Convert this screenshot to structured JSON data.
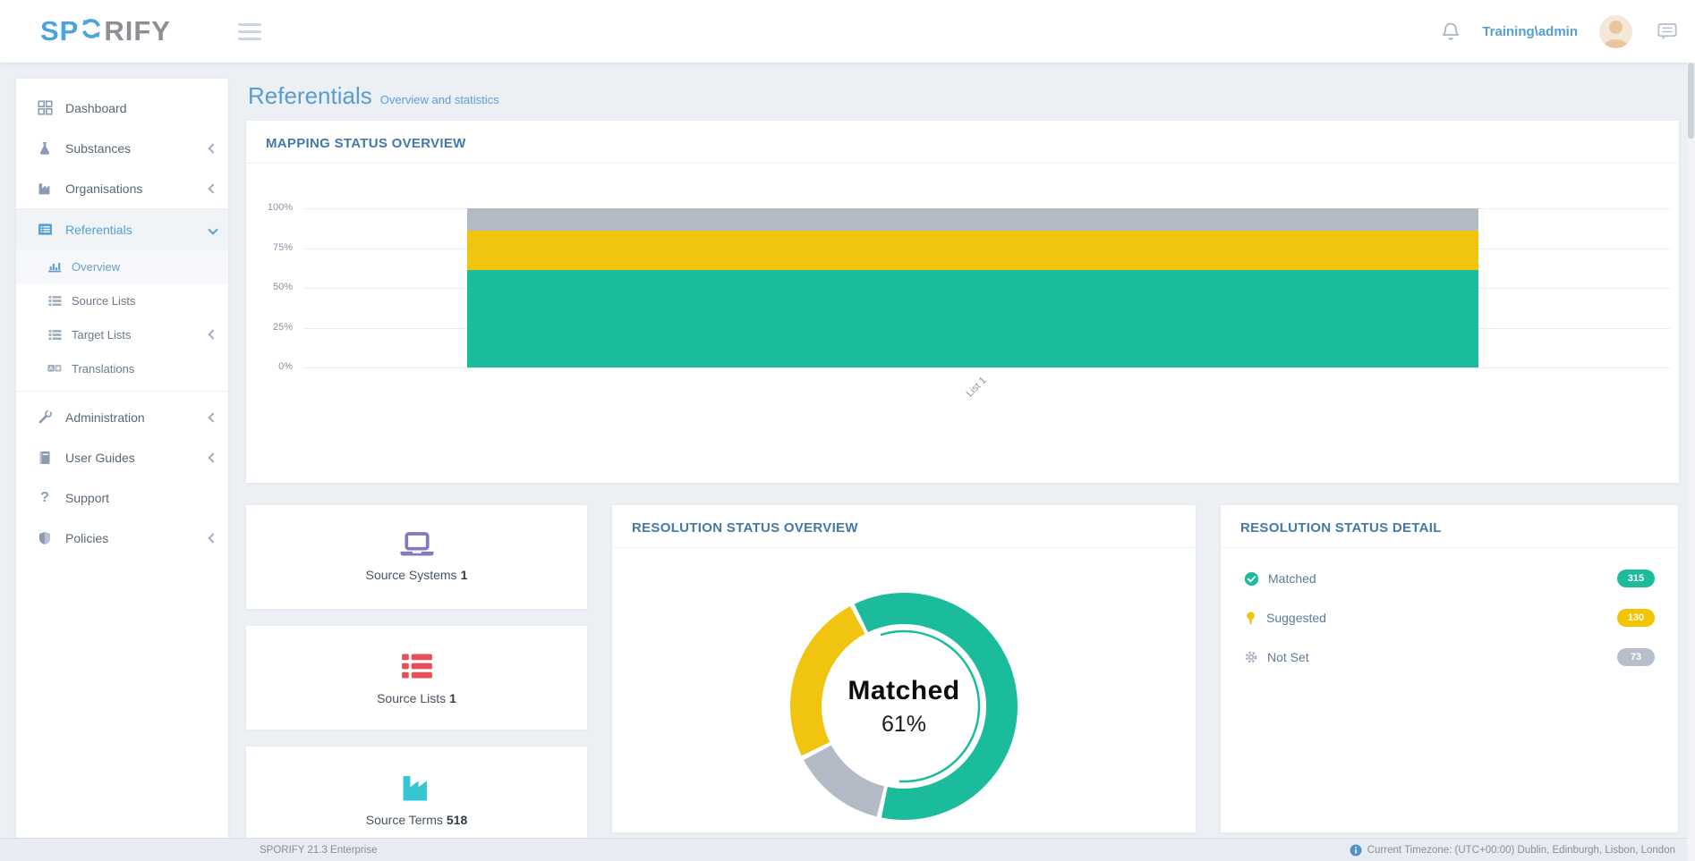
{
  "header": {
    "logo_parts": {
      "s": "SP",
      "rify": "RIFY"
    },
    "user": "Training\\admin"
  },
  "sidebar": {
    "translate_glyph": "A",
    "items": [
      {
        "label": "Dashboard",
        "icon": "grid-icon"
      },
      {
        "label": "Substances",
        "icon": "flask-icon",
        "chevron": "left"
      },
      {
        "label": "Organisations",
        "icon": "factory-icon",
        "chevron": "left"
      },
      {
        "label": "Referentials",
        "icon": "list-alt-icon",
        "chevron": "down",
        "active": true
      },
      {
        "label": "Overview",
        "icon": "bar-chart-icon",
        "sub": true,
        "active": true
      },
      {
        "label": "Source Lists",
        "icon": "list-icon",
        "sub": true
      },
      {
        "label": "Target Lists",
        "icon": "list-icon",
        "sub": true,
        "chevron": "left"
      },
      {
        "label": "Translations",
        "icon": "translate-icon",
        "sub": true
      },
      {
        "label": "Administration",
        "icon": "wrench-icon",
        "chevron": "left"
      },
      {
        "label": "User Guides",
        "icon": "book-icon",
        "chevron": "left"
      },
      {
        "label": "Support",
        "icon": "question-icon",
        "glyph": "?"
      },
      {
        "label": "Policies",
        "icon": "shield-icon",
        "chevron": "left"
      }
    ]
  },
  "main": {
    "page_title": "Referentials",
    "page_subtitle": "Overview and statistics",
    "mapping_card": {
      "title": "MAPPING STATUS OVERVIEW"
    },
    "stat_cards": [
      {
        "label": "Source Systems",
        "value": "1",
        "icon": "laptop-icon",
        "color": "#8478bf"
      },
      {
        "label": "Source Lists",
        "value": "1",
        "icon": "list-icon",
        "color": "#e7505a"
      },
      {
        "label": "Source Terms",
        "value": "518",
        "icon": "factory-icon",
        "color": "#36c6d3"
      }
    ],
    "resolution_overview_card": {
      "title": "RESOLUTION STATUS OVERVIEW"
    },
    "resolution_detail_card": {
      "title": "RESOLUTION STATUS DETAIL",
      "rows": [
        {
          "label": "Matched",
          "count": "315",
          "icon": "check-circle-icon",
          "color": "#1bbc9b"
        },
        {
          "label": "Suggested",
          "count": "130",
          "icon": "lightbulb-icon",
          "color": "#f2c500"
        },
        {
          "label": "Not Set",
          "count": "73",
          "icon": "gear-icon",
          "color": "#b7bfca"
        }
      ]
    }
  },
  "footer": {
    "version": "SPORIFY 21.3 Enterprise",
    "timezone": "Current Timezone: (UTC+00:00) Dublin, Edinburgh, Lisbon, London"
  },
  "chart_data": [
    {
      "type": "bar",
      "stacked": true,
      "title": "MAPPING STATUS OVERVIEW",
      "categories": [
        "List 1"
      ],
      "series": [
        {
          "name": "Matched",
          "values": [
            61
          ],
          "color": "#1bbc9b"
        },
        {
          "name": "Suggested",
          "values": [
            25
          ],
          "color": "#f1c40f"
        },
        {
          "name": "Not Set",
          "values": [
            14
          ],
          "color": "#b3bac6"
        }
      ],
      "y_ticks": [
        "0%",
        "25%",
        "50%",
        "75%",
        "100%"
      ],
      "ylim": [
        0,
        100
      ],
      "grid": true,
      "legend": false
    },
    {
      "type": "pie",
      "variant": "donut",
      "title": "RESOLUTION STATUS OVERVIEW",
      "slices": [
        {
          "label": "Matched",
          "value": 315,
          "pct": 61,
          "color": "#1bbc9b"
        },
        {
          "label": "Suggested",
          "value": 130,
          "pct": 25,
          "color": "#f1c40f"
        },
        {
          "label": "Not Set",
          "value": 73,
          "pct": 14,
          "color": "#b3bac6"
        }
      ],
      "clockwise_order": [
        0,
        2,
        1
      ],
      "start_angle": -27,
      "center_label": "Matched",
      "center_value": "61%"
    }
  ]
}
